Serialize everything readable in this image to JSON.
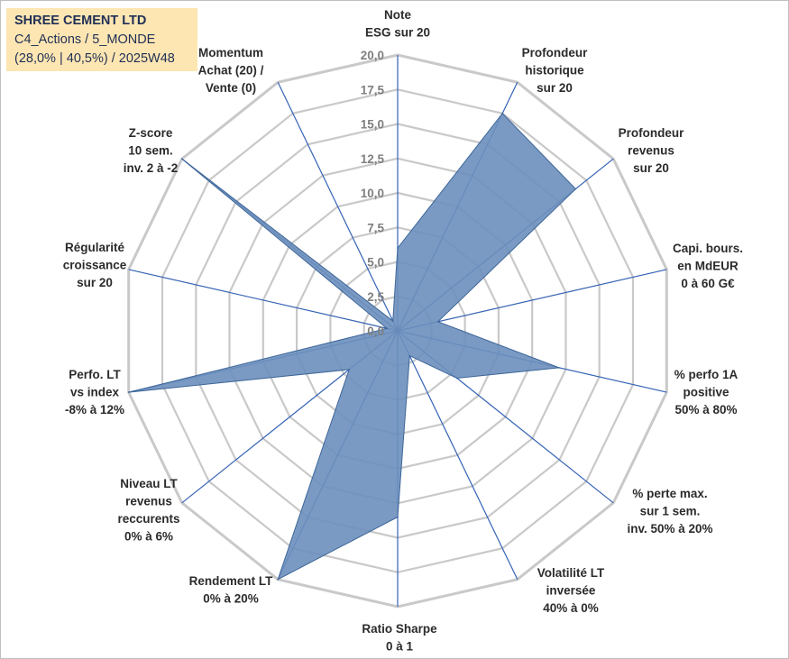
{
  "header": {
    "line1": "SHREE CEMENT LTD",
    "line2": "C4_Actions / 5_MONDE",
    "line3": "(28,0% | 40,5%) / 2025W48"
  },
  "colors": {
    "fill": "#6b8fbd",
    "stroke": "#3d6699",
    "grid": "#c9c9c9",
    "spoke": "#3563b5"
  },
  "chart_data": {
    "type": "radar",
    "title": "SHREE CEMENT LTD",
    "rmax": 20,
    "ticks": [
      "0,0",
      "2,5",
      "5,0",
      "7,5",
      "10,0",
      "12,5",
      "15,0",
      "17,5",
      "20,0"
    ],
    "tick_values": [
      0,
      2.5,
      5,
      7.5,
      10,
      12.5,
      15,
      17.5,
      20
    ],
    "axes": [
      {
        "label": [
          "Note",
          "ESG sur 20"
        ],
        "value": 6.0
      },
      {
        "label": [
          "Profondeur",
          "historique",
          "sur 20"
        ],
        "value": 17.5
      },
      {
        "label": [
          "Profondeur",
          "revenus",
          "sur 20"
        ],
        "value": 16.5
      },
      {
        "label": [
          "Capi. bours.",
          "en MdEUR",
          "0 à 60 G€"
        ],
        "value": 3.0
      },
      {
        "label": [
          "% perfo 1A",
          "positive",
          "50% à 80%"
        ],
        "value": 12.0
      },
      {
        "label": [
          "% perte max.",
          "sur 1 sem.",
          "inv. 50% à 20%"
        ],
        "value": 5.5
      },
      {
        "label": [
          "Volatilité LT",
          "inversée",
          "40% à 0%"
        ],
        "value": 2.0
      },
      {
        "label": [
          "Ratio Sharpe",
          "0 à 1"
        ],
        "value": 13.5
      },
      {
        "label": [
          "Rendement LT",
          "0% à 20%"
        ],
        "value": 20.0
      },
      {
        "label": [
          "Niveau LT",
          "revenus",
          "reccurents",
          "0% à 6%"
        ],
        "value": 4.5
      },
      {
        "label": [
          "Perfo. LT",
          "vs index",
          "-8% à 12%"
        ],
        "value": 20.0
      },
      {
        "label": [
          "Régularité",
          "croissance",
          "sur 20"
        ],
        "value": 0.8
      },
      {
        "label": [
          "Z-score",
          "10 sem.",
          "inv. 2 à -2"
        ],
        "value": 20.0
      },
      {
        "label": [
          "Momentum",
          "Achat (20) /",
          "Vente (0)"
        ],
        "value": 0.8
      }
    ]
  }
}
